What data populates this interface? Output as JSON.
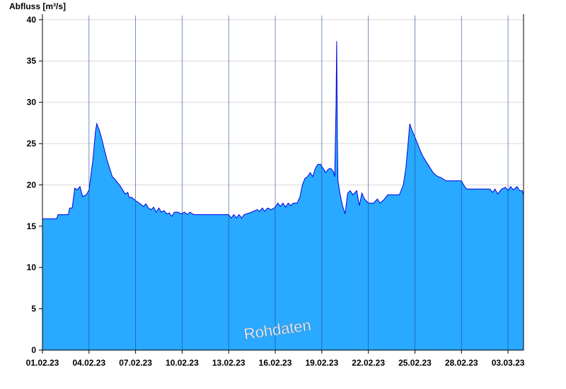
{
  "chart_data": {
    "type": "area",
    "title": "",
    "ylabel": "Abfluss [m³/s]",
    "xlabel": "",
    "watermark": "Rohdaten",
    "ylim": [
      0,
      40.5
    ],
    "xlim_days": [
      0,
      31
    ],
    "x_ticks": [
      "01.02.23",
      "04.02.23",
      "07.02.23",
      "10.02.23",
      "13.02.23",
      "16.02.23",
      "19.02.23",
      "22.02.23",
      "25.02.23",
      "28.02.23",
      "03.03.23"
    ],
    "y_ticks": [
      "0",
      "5",
      "10",
      "15",
      "20",
      "25",
      "30",
      "35",
      "40"
    ],
    "grid": true,
    "colors": {
      "fill": "#29a9ff",
      "line": "#0000e0",
      "axis": "#000000",
      "grid": "#d8d8d8",
      "day_marker": "#1a4a8a"
    },
    "series": [
      {
        "points": [
          [
            "01.02.23 00:00",
            15.9
          ],
          [
            "01.02.23 22:00",
            15.9
          ],
          [
            "02.02.23 00:00",
            16.4
          ],
          [
            "02.02.23 16:00",
            16.4
          ],
          [
            "02.02.23 18:00",
            17.2
          ],
          [
            "02.02.23 22:00",
            17.2
          ],
          [
            "03.02.23 02:00",
            19.6
          ],
          [
            "03.02.23 06:00",
            19.4
          ],
          [
            "03.02.23 10:00",
            19.8
          ],
          [
            "03.02.23 14:00",
            18.6
          ],
          [
            "03.02.23 20:00",
            18.8
          ],
          [
            "04.02.23 00:00",
            19.4
          ],
          [
            "04.02.23 06:00",
            23.0
          ],
          [
            "04.02.23 10:00",
            26.5
          ],
          [
            "04.02.23 12:00",
            27.4
          ],
          [
            "04.02.23 16:00",
            26.6
          ],
          [
            "04.02.23 20:00",
            25.5
          ],
          [
            "05.02.23 00:00",
            24.2
          ],
          [
            "05.02.23 04:00",
            23.0
          ],
          [
            "05.02.23 08:00",
            22.0
          ],
          [
            "05.02.23 12:00",
            21.0
          ],
          [
            "05.02.23 16:00",
            20.7
          ],
          [
            "05.02.23 20:00",
            20.3
          ],
          [
            "06.02.23 00:00",
            19.9
          ],
          [
            "06.02.23 04:00",
            19.4
          ],
          [
            "06.02.23 08:00",
            18.9
          ],
          [
            "06.02.23 12:00",
            19.1
          ],
          [
            "06.02.23 14:00",
            18.5
          ],
          [
            "06.02.23 18:00",
            18.5
          ],
          [
            "07.02.23 00:00",
            18.1
          ],
          [
            "07.02.23 06:00",
            17.8
          ],
          [
            "07.02.23 12:00",
            17.4
          ],
          [
            "07.02.23 16:00",
            17.7
          ],
          [
            "07.02.23 20:00",
            17.2
          ],
          [
            "08.02.23 00:00",
            17.0
          ],
          [
            "08.02.23 04:00",
            17.3
          ],
          [
            "08.02.23 08:00",
            16.7
          ],
          [
            "08.02.23 12:00",
            17.2
          ],
          [
            "08.02.23 16:00",
            16.7
          ],
          [
            "08.02.23 20:00",
            16.9
          ],
          [
            "09.02.23 00:00",
            16.5
          ],
          [
            "09.02.23 04:00",
            16.6
          ],
          [
            "09.02.23 08:00",
            16.2
          ],
          [
            "09.02.23 12:00",
            16.7
          ],
          [
            "09.02.23 18:00",
            16.7
          ],
          [
            "09.02.23 22:00",
            16.5
          ],
          [
            "10.02.23 04:00",
            16.7
          ],
          [
            "10.02.23 08:00",
            16.4
          ],
          [
            "10.02.23 12:00",
            16.7
          ],
          [
            "10.02.23 18:00",
            16.4
          ],
          [
            "11.02.23 00:00",
            16.4
          ],
          [
            "12.02.23 00:00",
            16.4
          ],
          [
            "13.02.23 00:00",
            16.4
          ],
          [
            "13.02.23 04:00",
            16.0
          ],
          [
            "13.02.23 08:00",
            16.4
          ],
          [
            "13.02.23 12:00",
            16.0
          ],
          [
            "13.02.23 16:00",
            16.4
          ],
          [
            "13.02.23 20:00",
            16.0
          ],
          [
            "14.02.23 00:00",
            16.4
          ],
          [
            "14.02.23 08:00",
            16.6
          ],
          [
            "14.02.23 14:00",
            16.8
          ],
          [
            "14.02.23 20:00",
            17.0
          ],
          [
            "15.02.23 00:00",
            16.8
          ],
          [
            "15.02.23 04:00",
            17.2
          ],
          [
            "15.02.23 08:00",
            16.8
          ],
          [
            "15.02.23 12:00",
            17.2
          ],
          [
            "15.02.23 18:00",
            17.0
          ],
          [
            "16.02.23 00:00",
            17.3
          ],
          [
            "16.02.23 04:00",
            17.8
          ],
          [
            "16.02.23 08:00",
            17.4
          ],
          [
            "16.02.23 12:00",
            17.8
          ],
          [
            "16.02.23 16:00",
            17.3
          ],
          [
            "16.02.23 20:00",
            17.8
          ],
          [
            "17.02.23 00:00",
            17.5
          ],
          [
            "17.02.23 04:00",
            17.8
          ],
          [
            "17.02.23 10:00",
            17.8
          ],
          [
            "17.02.23 14:00",
            18.5
          ],
          [
            "17.02.23 18:00",
            20.0
          ],
          [
            "17.02.23 22:00",
            20.8
          ],
          [
            "18.02.23 02:00",
            21.0
          ],
          [
            "18.02.23 06:00",
            21.5
          ],
          [
            "18.02.23 10:00",
            21.0
          ],
          [
            "18.02.23 14:00",
            22.0
          ],
          [
            "18.02.23 18:00",
            22.5
          ],
          [
            "18.02.23 22:00",
            22.5
          ],
          [
            "19.02.23 02:00",
            22.0
          ],
          [
            "19.02.23 06:00",
            21.5
          ],
          [
            "19.02.23 10:00",
            21.9
          ],
          [
            "19.02.23 14:00",
            22.0
          ],
          [
            "19.02.23 18:00",
            21.6
          ],
          [
            "19.02.23 20:00",
            21.0
          ],
          [
            "19.02.23 22:00",
            29.5
          ],
          [
            "19.02.23 23:00",
            37.4
          ],
          [
            "20.02.23 00:00",
            26.0
          ],
          [
            "20.02.23 01:00",
            20.5
          ],
          [
            "20.02.23 04:00",
            19.0
          ],
          [
            "20.02.23 08:00",
            17.5
          ],
          [
            "20.02.23 12:00",
            16.5
          ],
          [
            "20.02.23 16:00",
            19.0
          ],
          [
            "20.02.23 20:00",
            19.3
          ],
          [
            "21.02.23 00:00",
            18.8
          ],
          [
            "21.02.23 06:00",
            19.3
          ],
          [
            "21.02.23 10:00",
            17.5
          ],
          [
            "21.02.23 14:00",
            19.0
          ],
          [
            "21.02.23 18:00",
            18.3
          ],
          [
            "22.02.23 00:00",
            17.8
          ],
          [
            "22.02.23 08:00",
            17.8
          ],
          [
            "22.02.23 14:00",
            18.3
          ],
          [
            "22.02.23 18:00",
            17.8
          ],
          [
            "23.02.23 00:00",
            18.2
          ],
          [
            "23.02.23 06:00",
            18.8
          ],
          [
            "23.02.23 12:00",
            18.8
          ],
          [
            "24.02.23 00:00",
            18.8
          ],
          [
            "24.02.23 06:00",
            20.0
          ],
          [
            "24.02.23 10:00",
            22.0
          ],
          [
            "24.02.23 14:00",
            25.5
          ],
          [
            "24.02.23 16:00",
            27.4
          ],
          [
            "24.02.23 20:00",
            26.5
          ],
          [
            "25.02.23 00:00",
            25.8
          ],
          [
            "25.02.23 04:00",
            25.0
          ],
          [
            "25.02.23 08:00",
            24.2
          ],
          [
            "25.02.23 12:00",
            23.5
          ],
          [
            "25.02.23 16:00",
            23.0
          ],
          [
            "25.02.23 20:00",
            22.5
          ],
          [
            "26.02.23 00:00",
            22.0
          ],
          [
            "26.02.23 04:00",
            21.5
          ],
          [
            "26.02.23 08:00",
            21.2
          ],
          [
            "26.02.23 12:00",
            21.0
          ],
          [
            "26.02.23 16:00",
            20.9
          ],
          [
            "26.02.23 20:00",
            20.7
          ],
          [
            "27.02.23 00:00",
            20.5
          ],
          [
            "28.02.23 00:00",
            20.5
          ],
          [
            "28.02.23 04:00",
            19.9
          ],
          [
            "28.02.23 08:00",
            19.5
          ],
          [
            "01.03.23 00:00",
            19.5
          ],
          [
            "01.03.23 20:00",
            19.5
          ],
          [
            "02.03.23 00:00",
            19.1
          ],
          [
            "02.03.23 04:00",
            19.5
          ],
          [
            "02.03.23 08:00",
            18.9
          ],
          [
            "02.03.23 14:00",
            19.5
          ],
          [
            "02.03.23 20:00",
            19.7
          ],
          [
            "03.03.23 00:00",
            19.3
          ],
          [
            "03.03.23 04:00",
            19.8
          ],
          [
            "03.03.23 08:00",
            19.4
          ],
          [
            "03.03.23 14:00",
            19.8
          ],
          [
            "03.03.23 18:00",
            19.3
          ],
          [
            "03.03.23 22:00",
            19.3
          ],
          [
            "04.03.23 00:00",
            18.8
          ]
        ]
      }
    ]
  }
}
